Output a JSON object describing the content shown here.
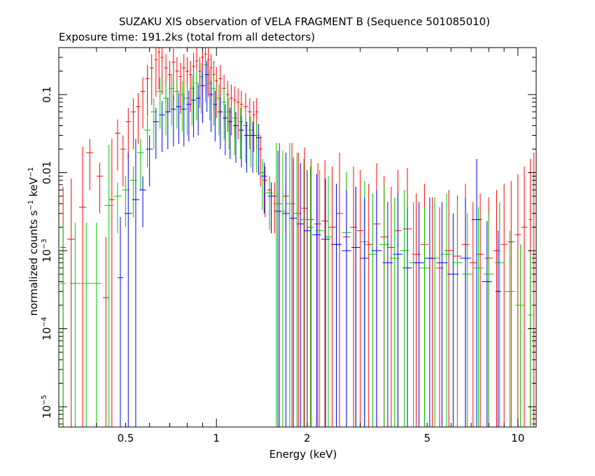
{
  "chart_data": {
    "type": "scatter",
    "title": "SUZAKU XIS observation of VELA FRAGMENT B (Sequence 501085010)",
    "subtitle": "Exposure time: 191.2ks (total from all detectors)",
    "xlabel": "Energy (keV)",
    "ylabel_prefix": "normalized counts s",
    "ylabel_exp1": "−1",
    "ylabel_mid": " keV",
    "ylabel_exp2": "−1",
    "x_scale": "log",
    "y_scale": "log",
    "xlim": [
      0.3,
      11.5
    ],
    "ylim": [
      5.5e-06,
      0.4
    ],
    "grid": false,
    "x_ticks": [
      {
        "value": 0.5,
        "label": "0.5"
      },
      {
        "value": 1,
        "label": "1"
      },
      {
        "value": 2,
        "label": "2"
      },
      {
        "value": 5,
        "label": "5"
      },
      {
        "value": 10,
        "label": "10"
      }
    ],
    "y_ticks": [
      {
        "value": 0.1,
        "label": "0.1"
      },
      {
        "value": 0.01,
        "label": "0.01"
      },
      {
        "value": 0.001,
        "label_base": "10",
        "label_exp": "−3"
      },
      {
        "value": 0.0001,
        "label_base": "10",
        "label_exp": "−4"
      },
      {
        "value": 1e-05,
        "label_base": "10",
        "label_exp": "−5"
      }
    ],
    "series": [
      {
        "color": "#ff0000",
        "points": [
          [
            0.31,
            0.0011
          ],
          [
            0.33,
            0.0014
          ],
          [
            0.36,
            0.0036
          ],
          [
            0.38,
            0.018
          ],
          [
            0.41,
            0.009
          ],
          [
            0.43,
            0.00025
          ],
          [
            0.45,
            0.0045
          ],
          [
            0.47,
            0.032
          ],
          [
            0.49,
            0.02
          ],
          [
            0.51,
            0.045
          ],
          [
            0.53,
            0.06
          ],
          [
            0.55,
            0.07
          ],
          [
            0.57,
            0.11
          ],
          [
            0.59,
            0.16
          ],
          [
            0.61,
            0.22
          ],
          [
            0.63,
            0.28
          ],
          [
            0.645,
            0.35
          ],
          [
            0.66,
            0.3
          ],
          [
            0.68,
            0.22
          ],
          [
            0.7,
            0.18
          ],
          [
            0.72,
            0.26
          ],
          [
            0.74,
            0.2
          ],
          [
            0.76,
            0.17
          ],
          [
            0.78,
            0.22
          ],
          [
            0.8,
            0.2
          ],
          [
            0.82,
            0.18
          ],
          [
            0.84,
            0.23
          ],
          [
            0.86,
            0.27
          ],
          [
            0.88,
            0.2
          ],
          [
            0.9,
            0.3
          ],
          [
            0.92,
            0.33
          ],
          [
            0.94,
            0.28
          ],
          [
            0.96,
            0.22
          ],
          [
            0.98,
            0.18
          ],
          [
            1.0,
            0.15
          ],
          [
            1.03,
            0.16
          ],
          [
            1.06,
            0.12
          ],
          [
            1.09,
            0.1
          ],
          [
            1.12,
            0.09
          ],
          [
            1.15,
            0.085
          ],
          [
            1.18,
            0.08
          ],
          [
            1.21,
            0.075
          ],
          [
            1.25,
            0.07
          ],
          [
            1.29,
            0.06
          ],
          [
            1.33,
            0.055
          ],
          [
            1.36,
            0.06
          ],
          [
            1.4,
            0.02
          ],
          [
            1.45,
            0.008
          ],
          [
            1.5,
            0.006
          ],
          [
            1.56,
            0.005
          ],
          [
            1.62,
            0.004
          ],
          [
            1.7,
            0.005
          ],
          [
            1.78,
            0.004
          ],
          [
            1.87,
            0.003
          ],
          [
            1.96,
            0.0035
          ],
          [
            2.06,
            0.0025
          ],
          [
            2.17,
            0.0022
          ],
          [
            2.29,
            0.0024
          ],
          [
            2.42,
            0.002
          ],
          [
            2.56,
            0.003
          ],
          [
            2.7,
            0.0015
          ],
          [
            2.85,
            0.002
          ],
          [
            3.0,
            0.0018
          ],
          [
            3.2,
            0.0012
          ],
          [
            3.4,
            0.0022
          ],
          [
            3.6,
            0.0015
          ],
          [
            3.8,
            0.0011
          ],
          [
            4.0,
            0.0018
          ],
          [
            4.3,
            0.0019
          ],
          [
            4.6,
            0.0009
          ],
          [
            4.9,
            0.0012
          ],
          [
            5.2,
            0.0008
          ],
          [
            5.5,
            0.0006
          ],
          [
            5.9,
            0.001
          ],
          [
            6.3,
            0.00085
          ],
          [
            6.7,
            0.0012
          ],
          [
            7.1,
            0.0007
          ],
          [
            7.5,
            0.0009
          ],
          [
            8.0,
            0.0008
          ],
          [
            8.5,
            0.001
          ],
          [
            9.0,
            0.0012
          ],
          [
            9.5,
            0.0013
          ],
          [
            10.0,
            0.0016
          ],
          [
            10.5,
            0.002
          ],
          [
            11.0,
            0.0025
          ],
          [
            11.3,
            0.003
          ]
        ]
      },
      {
        "color": "#00c800",
        "points": [
          [
            0.31,
            0.00038
          ],
          [
            0.34,
            0.00038
          ],
          [
            0.37,
            0.00038
          ],
          [
            0.4,
            0.00038
          ],
          [
            0.44,
            0.0038
          ],
          [
            0.47,
            0.005
          ],
          [
            0.5,
            0.006
          ],
          [
            0.53,
            0.008
          ],
          [
            0.56,
            0.018
          ],
          [
            0.59,
            0.035
          ],
          [
            0.62,
            0.06
          ],
          [
            0.65,
            0.11
          ],
          [
            0.68,
            0.09
          ],
          [
            0.71,
            0.12
          ],
          [
            0.74,
            0.11
          ],
          [
            0.77,
            0.1
          ],
          [
            0.8,
            0.09
          ],
          [
            0.83,
            0.12
          ],
          [
            0.86,
            0.14
          ],
          [
            0.89,
            0.17
          ],
          [
            0.92,
            0.24
          ],
          [
            0.95,
            0.14
          ],
          [
            0.98,
            0.12
          ],
          [
            1.02,
            0.09
          ],
          [
            1.06,
            0.08
          ],
          [
            1.1,
            0.06
          ],
          [
            1.15,
            0.05
          ],
          [
            1.2,
            0.045
          ],
          [
            1.25,
            0.04
          ],
          [
            1.3,
            0.035
          ],
          [
            1.36,
            0.03
          ],
          [
            1.42,
            0.01
          ],
          [
            1.5,
            0.0055
          ],
          [
            1.58,
            0.004
          ],
          [
            1.66,
            0.0032
          ],
          [
            1.75,
            0.004
          ],
          [
            1.85,
            0.003
          ],
          [
            1.95,
            0.0025
          ],
          [
            2.05,
            0.002
          ],
          [
            2.2,
            0.0018
          ],
          [
            2.35,
            0.0015
          ],
          [
            2.5,
            0.0012
          ],
          [
            2.7,
            0.0017
          ],
          [
            2.9,
            0.0011
          ],
          [
            3.1,
            0.0013
          ],
          [
            3.3,
            0.0009
          ],
          [
            3.6,
            0.0012
          ],
          [
            3.9,
            0.0008
          ],
          [
            4.2,
            0.001
          ],
          [
            4.5,
            0.0007
          ],
          [
            4.9,
            0.0006
          ],
          [
            5.3,
            0.0008
          ],
          [
            5.8,
            0.0009
          ],
          [
            6.3,
            0.0007
          ],
          [
            6.8,
            0.0005
          ],
          [
            7.4,
            0.0006
          ],
          [
            8.0,
            0.0005
          ],
          [
            8.7,
            0.0007
          ],
          [
            9.4,
            0.0003
          ],
          [
            10.2,
            0.0002
          ],
          [
            11.0,
            0.00015
          ]
        ]
      },
      {
        "color": "#0000ff",
        "points": [
          [
            0.48,
            0.00045
          ],
          [
            0.51,
            0.003
          ],
          [
            0.54,
            0.0045
          ],
          [
            0.57,
            0.006
          ],
          [
            0.6,
            0.02
          ],
          [
            0.63,
            0.045
          ],
          [
            0.66,
            0.055
          ],
          [
            0.69,
            0.06
          ],
          [
            0.72,
            0.065
          ],
          [
            0.75,
            0.07
          ],
          [
            0.78,
            0.065
          ],
          [
            0.81,
            0.075
          ],
          [
            0.84,
            0.085
          ],
          [
            0.87,
            0.09
          ],
          [
            0.9,
            0.13
          ],
          [
            0.93,
            0.18
          ],
          [
            0.96,
            0.1
          ],
          [
            0.99,
            0.075
          ],
          [
            1.03,
            0.06
          ],
          [
            1.07,
            0.05
          ],
          [
            1.11,
            0.045
          ],
          [
            1.16,
            0.04
          ],
          [
            1.21,
            0.035
          ],
          [
            1.26,
            0.03
          ],
          [
            1.32,
            0.03
          ],
          [
            1.38,
            0.028
          ],
          [
            1.44,
            0.009
          ],
          [
            1.52,
            0.005
          ],
          [
            1.6,
            0.0032
          ],
          [
            1.7,
            0.003
          ],
          [
            1.8,
            0.0026
          ],
          [
            1.9,
            0.0022
          ],
          [
            2.0,
            0.0018
          ],
          [
            2.15,
            0.0016
          ],
          [
            2.3,
            0.0014
          ],
          [
            2.5,
            0.0012
          ],
          [
            2.7,
            0.001
          ],
          [
            2.9,
            0.0011
          ],
          [
            3.1,
            0.0008
          ],
          [
            3.4,
            0.001
          ],
          [
            3.7,
            0.0007
          ],
          [
            4.0,
            0.0009
          ],
          [
            4.3,
            0.0006
          ],
          [
            4.7,
            0.0007
          ],
          [
            5.1,
            0.0008
          ],
          [
            5.6,
            0.0007
          ],
          [
            6.1,
            0.0005
          ],
          [
            6.7,
            0.0008
          ],
          [
            7.3,
            0.0025
          ],
          [
            7.9,
            0.0004
          ],
          [
            8.6,
            0.0003
          ]
        ]
      }
    ]
  }
}
